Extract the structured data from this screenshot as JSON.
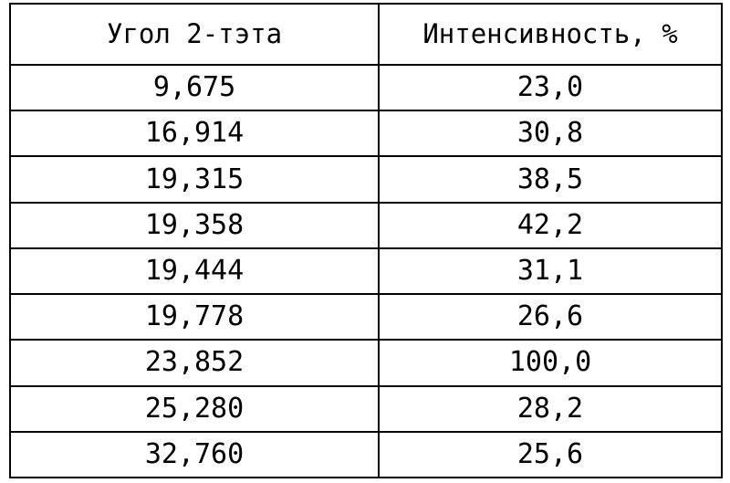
{
  "table": {
    "headers": [
      "Угол 2-тэта",
      "Интенсивность, %"
    ],
    "rows": [
      [
        "9,675",
        "23,0"
      ],
      [
        "16,914",
        "30,8"
      ],
      [
        "19,315",
        "38,5"
      ],
      [
        "19,358",
        "42,2"
      ],
      [
        "19,444",
        "31,1"
      ],
      [
        "19,778",
        "26,6"
      ],
      [
        "23,852",
        "100,0"
      ],
      [
        "25,280",
        "28,2"
      ],
      [
        "32,760",
        "25,6"
      ]
    ]
  }
}
